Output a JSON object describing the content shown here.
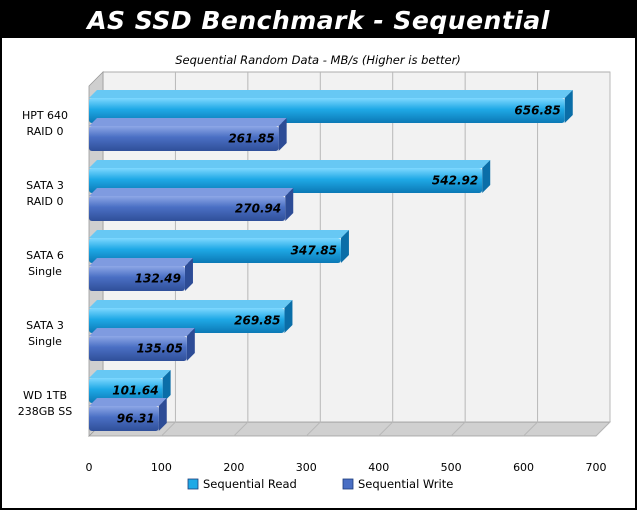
{
  "header": {
    "title": "AS SSD Benchmark - Sequential"
  },
  "chart_data": {
    "type": "bar",
    "orientation": "horizontal",
    "title": "Sequential Random Data - MB/s (Higher is better)",
    "categories": [
      [
        "HPT 640",
        "RAID 0"
      ],
      [
        "SATA 3",
        "RAID 0"
      ],
      [
        "SATA 6",
        "Single"
      ],
      [
        "SATA 3",
        "Single"
      ],
      [
        "WD 1TB",
        "238GB SS"
      ]
    ],
    "series": [
      {
        "name": "Sequential Read",
        "values": [
          656.85,
          542.92,
          347.85,
          269.85,
          101.64
        ],
        "labels": [
          "656.85",
          "542.92",
          "347.85",
          "269.85",
          "101.64"
        ],
        "color": "#1fa9e6"
      },
      {
        "name": "Sequential Write",
        "values": [
          261.85,
          270.94,
          132.49,
          135.05,
          96.31
        ],
        "labels": [
          "261.85",
          "270.94",
          "132.49",
          "135.05",
          "96.31"
        ],
        "color": "#4a6fc4"
      }
    ],
    "xlim": [
      0,
      700
    ],
    "xticks": [
      "0",
      "100",
      "200",
      "300",
      "400",
      "500",
      "600",
      "700"
    ],
    "grid": true,
    "legend": "bottom"
  }
}
